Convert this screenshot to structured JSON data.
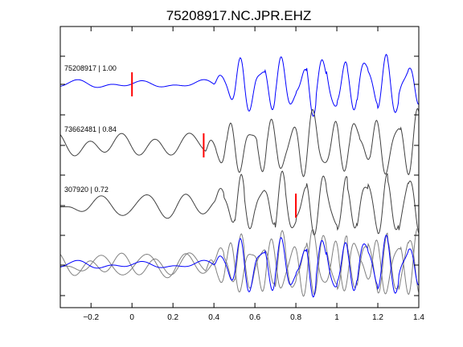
{
  "chart_data": {
    "type": "line",
    "title": "75208917.NC.JPR.EHZ",
    "xlabel": "",
    "ylabel": "",
    "xlim": [
      -0.35,
      1.4
    ],
    "x_ticks": [
      -0.2,
      0,
      0.2,
      0.4,
      0.6,
      0.8,
      1.0,
      1.2,
      1.4
    ],
    "x_tick_labels": [
      "−0.2",
      "0",
      "0.2",
      "0.4",
      "0.6",
      "0.8",
      "1",
      "1.2",
      "1.4"
    ],
    "grid": false,
    "traces": [
      {
        "label": "75208917 | 1.00",
        "color": "#0000ff",
        "pick_time": 0.0,
        "onset": 0.4
      },
      {
        "label": "73662481 | 0.84",
        "color": "#404040",
        "pick_time": 0.35,
        "onset": 0.36
      },
      {
        "label": "307920 | 0.72",
        "color": "#404040",
        "pick_time": 0.8,
        "onset": 0.4
      }
    ],
    "pick_color": "#ff0000",
    "overlay": {
      "colors": [
        "#0000ff",
        "#808080",
        "#808080"
      ]
    }
  }
}
